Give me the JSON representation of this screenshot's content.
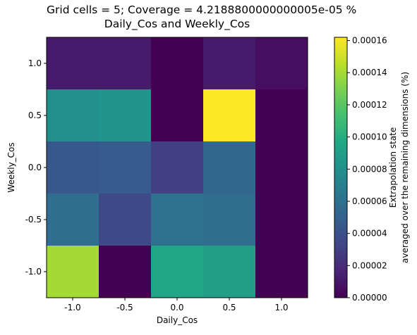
{
  "chart_data": {
    "type": "heatmap",
    "title_line1": "Grid cells = 5; Coverage = 4.2188800000000005e-05 %",
    "title_line2": "Daily_Cos and Weekly_Cos",
    "xlabel": "Daily_Cos",
    "ylabel": "Weekly_Cos",
    "x_categories": [
      "-1.0",
      "-0.5",
      "0.0",
      "0.5",
      "1.0"
    ],
    "y_categories": [
      "1.0",
      "0.5",
      "0.0",
      "-0.5",
      "-1.0"
    ],
    "values": [
      [
        1.2e-05,
        1.2e-05,
        0.0,
        1.2e-05,
        6e-06
      ],
      [
        8e-05,
        8.4e-05,
        0.0,
        0.000162,
        0.0
      ],
      [
        4.4e-05,
        4.6e-05,
        3e-05,
        5.4e-05,
        0.0
      ],
      [
        5.8e-05,
        3.6e-05,
        6e-05,
        5.8e-05,
        0.0
      ],
      [
        0.00014,
        0.0,
        9.6e-05,
        9e-05,
        0.0
      ]
    ],
    "colormap": "viridis",
    "vmin": 0.0,
    "vmax": 0.000162,
    "colorbar_label_line1": "Extrapolation state",
    "colorbar_label_line2": "averaged over the remaining dimensions (%)",
    "colorbar_ticks": [
      {
        "value": 0.0,
        "label": "0.00000"
      },
      {
        "value": 2e-05,
        "label": "0.00002"
      },
      {
        "value": 4e-05,
        "label": "0.00004"
      },
      {
        "value": 6e-05,
        "label": "0.00006"
      },
      {
        "value": 8e-05,
        "label": "0.00008"
      },
      {
        "value": 0.0001,
        "label": "0.00010"
      },
      {
        "value": 0.00012,
        "label": "0.00012"
      },
      {
        "value": 0.00014,
        "label": "0.00014"
      },
      {
        "value": 0.00016,
        "label": "0.00016"
      }
    ]
  }
}
